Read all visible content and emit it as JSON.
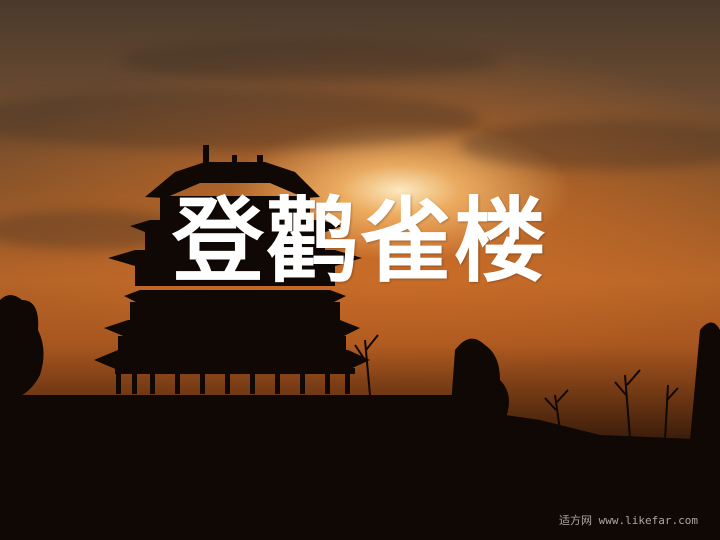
{
  "slide": {
    "title": "登鹳雀楼",
    "watermark": "适方网 www.likefar.com"
  },
  "scene": {
    "subject": "pagoda-silhouette",
    "colors": {
      "sky_top": "#4a3a2c",
      "sky_glow": "#b56428",
      "sun": "#fff0c8",
      "silhouette": "#100804",
      "title_text": "#ffffff"
    }
  }
}
